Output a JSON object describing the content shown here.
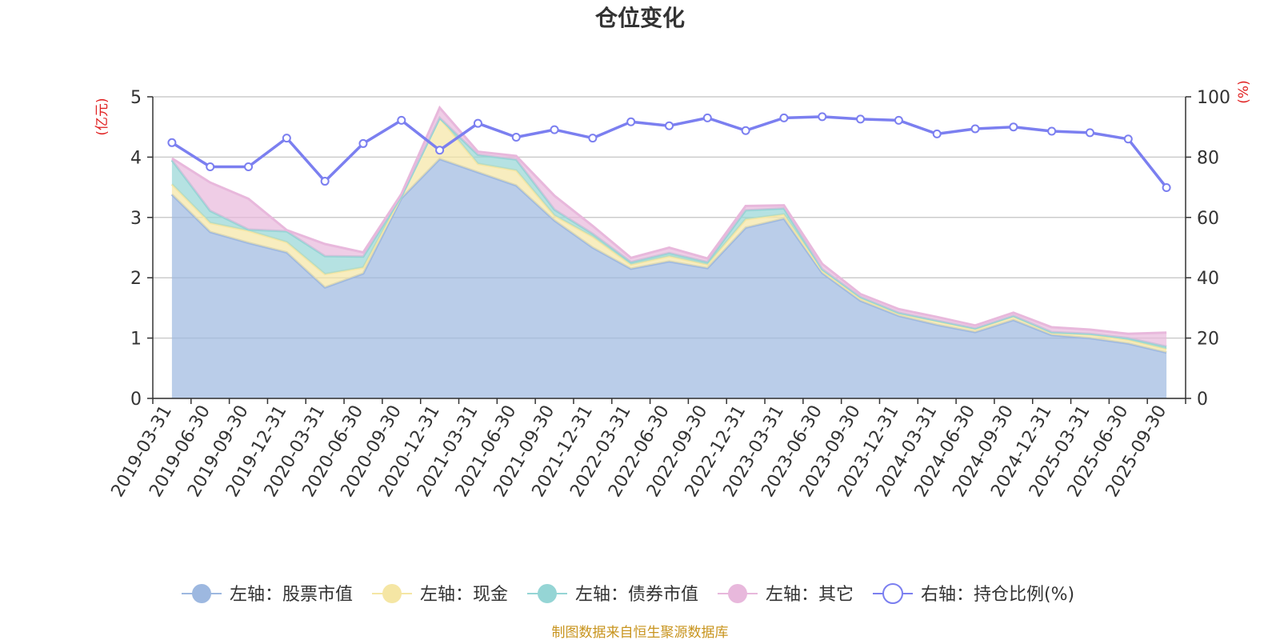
{
  "chart_data": {
    "type": "area",
    "title": "仓位变化",
    "left_axis": {
      "unit": "(亿元)",
      "ylim": [
        0,
        5
      ],
      "ticks": [
        "0",
        "1",
        "2",
        "3",
        "4",
        "5"
      ]
    },
    "right_axis": {
      "unit": "(%)",
      "ylim": [
        0,
        100
      ],
      "ticks": [
        "0",
        "20",
        "40",
        "60",
        "80",
        "100"
      ]
    },
    "categories": [
      "2019-03-31",
      "2019-06-30",
      "2019-09-30",
      "2019-12-31",
      "2020-03-31",
      "2020-06-30",
      "2020-09-30",
      "2020-12-31",
      "2021-03-31",
      "2021-06-30",
      "2021-09-30",
      "2021-12-31",
      "2022-03-31",
      "2022-06-30",
      "2022-09-30",
      "2022-12-31",
      "2023-03-31",
      "2023-06-30",
      "2023-09-30",
      "2023-12-31",
      "2024-03-31",
      "2024-06-30",
      "2024-09-30",
      "2024-12-31",
      "2025-03-31",
      "2025-06-30",
      "2025-09-30"
    ],
    "series": [
      {
        "name": "左轴：股票市值",
        "axis": "left",
        "stack": true,
        "color": "#9db8e0",
        "values": [
          3.38,
          2.76,
          2.58,
          2.42,
          1.84,
          2.07,
          3.32,
          3.97,
          3.75,
          3.53,
          2.95,
          2.5,
          2.15,
          2.27,
          2.16,
          2.83,
          2.98,
          2.08,
          1.62,
          1.37,
          1.22,
          1.1,
          1.3,
          1.05,
          1.0,
          0.91,
          0.76
        ]
      },
      {
        "name": "左轴：现金",
        "axis": "left",
        "stack": true,
        "color": "#f5e6a4",
        "values": [
          0.17,
          0.15,
          0.2,
          0.17,
          0.22,
          0.1,
          0.03,
          0.68,
          0.14,
          0.25,
          0.08,
          0.18,
          0.07,
          0.09,
          0.06,
          0.14,
          0.07,
          0.04,
          0.04,
          0.04,
          0.06,
          0.05,
          0.06,
          0.04,
          0.06,
          0.06,
          0.06
        ]
      },
      {
        "name": "左轴：债券市值",
        "axis": "left",
        "stack": true,
        "color": "#95d5d5",
        "values": [
          0.4,
          0.2,
          0.02,
          0.18,
          0.3,
          0.18,
          0.0,
          0.0,
          0.15,
          0.18,
          0.1,
          0.05,
          0.04,
          0.05,
          0.04,
          0.15,
          0.1,
          0.02,
          0.02,
          0.01,
          0.01,
          0.01,
          0.01,
          0.01,
          0.01,
          0.03,
          0.04
        ]
      },
      {
        "name": "左轴：其它",
        "axis": "left",
        "stack": true,
        "color": "#e8b8dc",
        "values": [
          0.03,
          0.47,
          0.51,
          0.02,
          0.2,
          0.07,
          0.04,
          0.17,
          0.05,
          0.06,
          0.23,
          0.13,
          0.07,
          0.09,
          0.06,
          0.07,
          0.05,
          0.09,
          0.05,
          0.06,
          0.06,
          0.05,
          0.05,
          0.08,
          0.07,
          0.07,
          0.23
        ]
      },
      {
        "name": "右轴：持仓比例(%)",
        "axis": "right",
        "stack": false,
        "color": "#7b7ff0",
        "values": [
          84.8,
          76.8,
          76.8,
          86.3,
          72.0,
          84.5,
          92.2,
          82.3,
          91.2,
          86.6,
          89.1,
          86.3,
          91.7,
          90.4,
          93.0,
          88.8,
          93.0,
          93.4,
          92.6,
          92.2,
          87.7,
          89.4,
          90.0,
          88.6,
          88.1,
          86.0,
          69.9
        ]
      }
    ],
    "legend_position": "bottom",
    "grid": true
  },
  "source_note": "制图数据来自恒生聚源数据库"
}
